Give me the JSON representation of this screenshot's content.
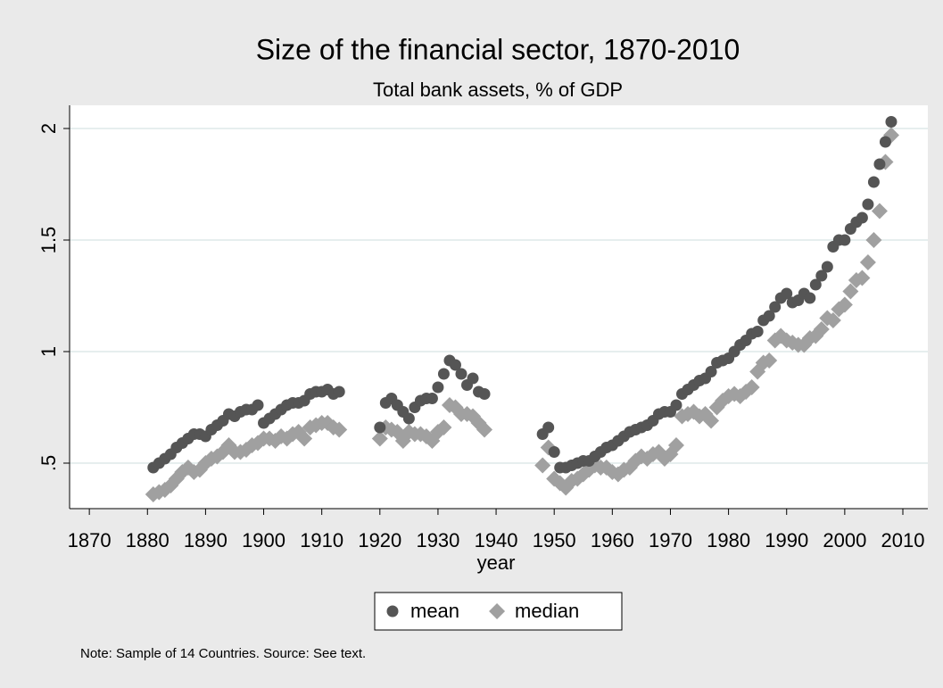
{
  "chart_data": {
    "type": "scatter",
    "title": "Size of the financial sector, 1870-2010",
    "subtitle": "Total bank assets, % of GDP",
    "x_label": "year",
    "note": "Note: Sample of 14 Countries. Source: See text.",
    "x": [
      1881,
      1882,
      1883,
      1884,
      1885,
      1886,
      1887,
      1888,
      1889,
      1890,
      1891,
      1892,
      1893,
      1894,
      1895,
      1896,
      1897,
      1898,
      1899,
      1900,
      1901,
      1902,
      1903,
      1904,
      1905,
      1906,
      1907,
      1908,
      1909,
      1910,
      1911,
      1912,
      1913,
      1920,
      1921,
      1922,
      1923,
      1924,
      1925,
      1926,
      1927,
      1928,
      1929,
      1930,
      1931,
      1932,
      1933,
      1934,
      1935,
      1936,
      1937,
      1938,
      1948,
      1949,
      1950,
      1951,
      1952,
      1953,
      1954,
      1955,
      1956,
      1957,
      1958,
      1959,
      1960,
      1961,
      1962,
      1963,
      1964,
      1965,
      1966,
      1967,
      1968,
      1969,
      1970,
      1971,
      1972,
      1973,
      1974,
      1975,
      1976,
      1977,
      1978,
      1979,
      1980,
      1981,
      1982,
      1983,
      1984,
      1985,
      1986,
      1987,
      1988,
      1989,
      1990,
      1991,
      1992,
      1993,
      1994,
      1995,
      1996,
      1997,
      1998,
      1999,
      2000,
      2001,
      2002,
      2003,
      2004,
      2005,
      2006,
      2007,
      2008
    ],
    "series": [
      {
        "name": "mean",
        "color": "#555555",
        "marker": "circle",
        "values": [
          0.48,
          0.5,
          0.52,
          0.54,
          0.57,
          0.59,
          0.61,
          0.63,
          0.63,
          0.62,
          0.65,
          0.67,
          0.69,
          0.72,
          0.71,
          0.73,
          0.74,
          0.74,
          0.76,
          0.68,
          0.7,
          0.72,
          0.74,
          0.76,
          0.77,
          0.77,
          0.78,
          0.81,
          0.82,
          0.82,
          0.83,
          0.81,
          0.82,
          0.66,
          0.77,
          0.79,
          0.76,
          0.73,
          0.7,
          0.75,
          0.78,
          0.79,
          0.79,
          0.84,
          0.9,
          0.96,
          0.94,
          0.9,
          0.85,
          0.88,
          0.82,
          0.81,
          0.63,
          0.66,
          0.55,
          0.48,
          0.48,
          0.49,
          0.5,
          0.51,
          0.51,
          0.53,
          0.55,
          0.57,
          0.58,
          0.6,
          0.62,
          0.64,
          0.65,
          0.66,
          0.67,
          0.69,
          0.72,
          0.73,
          0.73,
          0.76,
          0.81,
          0.83,
          0.85,
          0.87,
          0.88,
          0.91,
          0.95,
          0.96,
          0.97,
          1.0,
          1.03,
          1.05,
          1.08,
          1.09,
          1.14,
          1.16,
          1.2,
          1.24,
          1.26,
          1.22,
          1.23,
          1.26,
          1.24,
          1.3,
          1.34,
          1.38,
          1.47,
          1.5,
          1.5,
          1.55,
          1.58,
          1.6,
          1.66,
          1.76,
          1.84,
          1.94,
          2.03
        ]
      },
      {
        "name": "median",
        "color": "#a0a0a0",
        "marker": "diamond",
        "values": [
          0.36,
          0.37,
          0.38,
          0.4,
          0.43,
          0.46,
          0.48,
          0.46,
          0.47,
          0.5,
          0.52,
          0.53,
          0.55,
          0.58,
          0.55,
          0.55,
          0.56,
          0.58,
          0.59,
          0.61,
          0.61,
          0.6,
          0.62,
          0.61,
          0.63,
          0.64,
          0.61,
          0.66,
          0.67,
          0.68,
          0.68,
          0.66,
          0.65,
          0.61,
          0.66,
          0.65,
          0.64,
          0.6,
          0.64,
          0.63,
          0.63,
          0.62,
          0.6,
          0.64,
          0.66,
          0.76,
          0.75,
          0.72,
          0.72,
          0.71,
          0.68,
          0.65,
          0.49,
          0.57,
          0.43,
          0.41,
          0.39,
          0.42,
          0.43,
          0.45,
          0.47,
          0.49,
          0.48,
          0.48,
          0.46,
          0.45,
          0.47,
          0.48,
          0.51,
          0.53,
          0.52,
          0.54,
          0.55,
          0.52,
          0.54,
          0.58,
          0.71,
          0.72,
          0.73,
          0.71,
          0.72,
          0.69,
          0.75,
          0.78,
          0.8,
          0.81,
          0.8,
          0.82,
          0.84,
          0.91,
          0.95,
          0.96,
          1.05,
          1.07,
          1.05,
          1.04,
          1.03,
          1.03,
          1.06,
          1.07,
          1.1,
          1.15,
          1.14,
          1.19,
          1.21,
          1.27,
          1.32,
          1.33,
          1.4,
          1.5,
          1.63,
          1.85,
          1.97
        ]
      }
    ],
    "xlim": [
      1866.6,
      2014.3
    ],
    "xticks": [
      1870,
      1880,
      1890,
      1900,
      1910,
      1920,
      1930,
      1940,
      1950,
      1960,
      1970,
      1980,
      1990,
      2000,
      2010
    ],
    "ylim": [
      0.296,
      2.104
    ],
    "yticks": [
      {
        "value": 0.5,
        "label": ".5"
      },
      1,
      1.5,
      2
    ],
    "grid": true,
    "legend": "bottom"
  }
}
